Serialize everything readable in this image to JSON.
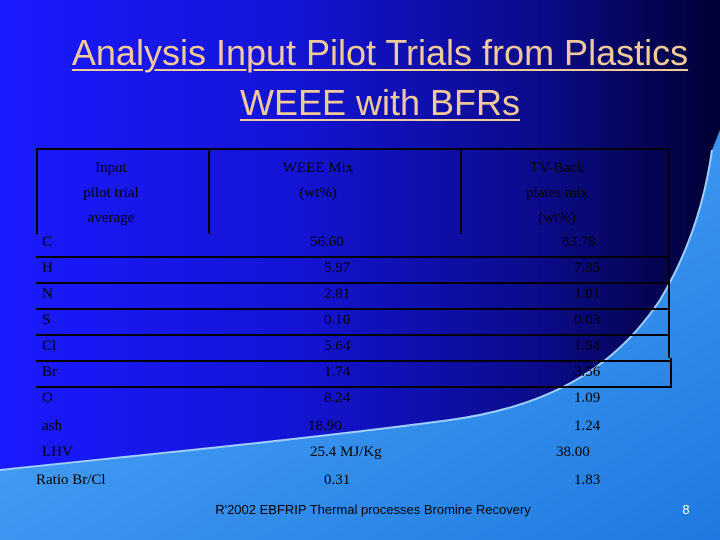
{
  "title": "Analysis Input Pilot Trials from Plastics WEEE with BFRs",
  "table": {
    "headers": {
      "col1": [
        "Input",
        "pilot trial",
        "average"
      ],
      "col2": [
        "WEEE Mix",
        "(wt%)"
      ],
      "col3": [
        "TV-Back",
        "plates mix",
        "(wt%)"
      ]
    },
    "rows": [
      {
        "label": "C",
        "weee": "56.60",
        "tv": "83.78"
      },
      {
        "label": "H",
        "weee": "5.97",
        "tv": "7.35"
      },
      {
        "label": "N",
        "weee": "2.81",
        "tv": "1.01"
      },
      {
        "label": "S",
        "weee": "0.10",
        "tv": "0.03"
      },
      {
        "label": "Cl",
        "weee": "5.64",
        "tv": "1.94"
      },
      {
        "label": "Br",
        "weee": "1.74",
        "tv": "3.56"
      },
      {
        "label": "O",
        "weee": "8.24",
        "tv": "1.09"
      },
      {
        "label": "ash",
        "weee": "18.90",
        "tv": "1.24"
      },
      {
        "label": "LHV",
        "weee": "25.4 MJ/Kg",
        "tv": "38.00"
      },
      {
        "label": "Ratio Br/Cl",
        "weee": "0.31",
        "tv": "1.83"
      }
    ]
  },
  "footer": "R'2002 EBFRIP Thermal processes Bromine Recovery",
  "page_number": "8",
  "colors": {
    "background": "#1414d6",
    "title": "#f2c99a",
    "wave": "#1e90ff",
    "text": "#000000"
  }
}
